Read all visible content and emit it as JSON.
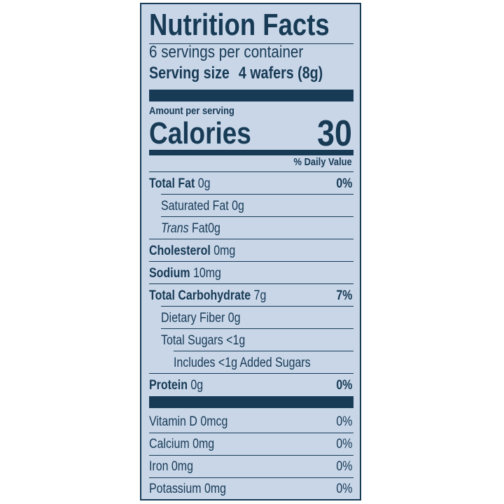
{
  "label": {
    "title": "Nutrition Facts",
    "servings_per_container": "6 servings per container",
    "serving_size_label": "Serving size",
    "serving_size_value": "4 wafers (8g)",
    "amount_per_serving": "Amount per serving",
    "calories_label": "Calories",
    "calories_value": "30",
    "daily_value_header": "% Daily Value",
    "nutrients": [
      {
        "name": "Total Fat",
        "amount": "0g",
        "dv": "0%"
      },
      {
        "name": "Saturated Fat",
        "amount": "0g"
      },
      {
        "name": "Trans",
        "suffix": "Fat",
        "amount": "0g"
      },
      {
        "name": "Cholesterol",
        "amount": "0mg"
      },
      {
        "name": "Sodium",
        "amount": "10mg"
      },
      {
        "name": "Total Carbohydrate",
        "amount": "7g",
        "dv": "7%"
      },
      {
        "name": "Dietary Fiber",
        "amount": "0g"
      },
      {
        "name": "Total Sugars",
        "amount": "<1g"
      },
      {
        "text": "Includes <1g Added Sugars"
      },
      {
        "name": "Protein",
        "amount": "0g",
        "dv": "0%"
      }
    ],
    "vitamins": [
      {
        "text": "Vitamin D 0mcg",
        "dv": "0%"
      },
      {
        "text": "Calcium 0mg",
        "dv": "0%"
      },
      {
        "text": "Iron 0mg",
        "dv": "0%"
      },
      {
        "text": "Potassium 0mg",
        "dv": "0%"
      }
    ]
  },
  "colors": {
    "text": "#173a55",
    "background": "#c8d6e8"
  }
}
